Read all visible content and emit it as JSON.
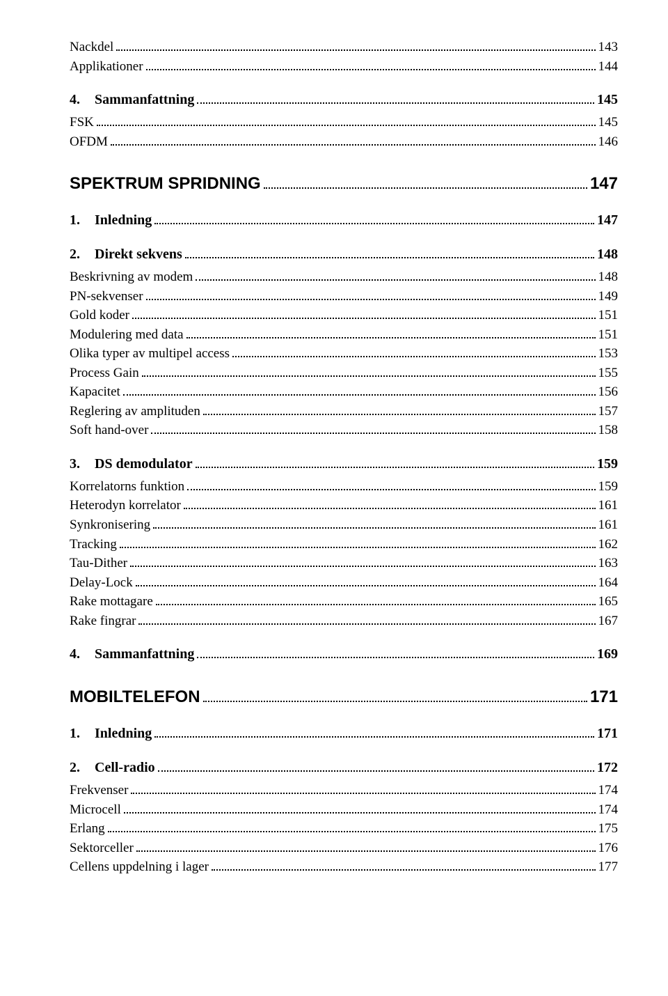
{
  "toc": [
    {
      "level": "body",
      "label": "Nackdel",
      "page": "143"
    },
    {
      "level": "body",
      "label": "Applikationer",
      "page": "144"
    },
    {
      "level": "h2",
      "num": "4.",
      "label": "Sammanfattning",
      "page": "145"
    },
    {
      "level": "body",
      "label": "FSK",
      "page": "145"
    },
    {
      "level": "body",
      "label": "OFDM",
      "page": "146"
    },
    {
      "level": "h1",
      "label": "SPEKTRUM SPRIDNING",
      "page": "147"
    },
    {
      "level": "h2",
      "num": "1.",
      "label": "Inledning",
      "page": "147"
    },
    {
      "level": "h2",
      "num": "2.",
      "label": "Direkt sekvens",
      "page": "148"
    },
    {
      "level": "body",
      "label": "Beskrivning av modem",
      "page": "148"
    },
    {
      "level": "body",
      "label": "PN-sekvenser",
      "page": "149"
    },
    {
      "level": "body",
      "label": "Gold koder",
      "page": "151"
    },
    {
      "level": "body",
      "label": "Modulering med data",
      "page": "151"
    },
    {
      "level": "body",
      "label": "Olika typer av multipel access",
      "page": "153"
    },
    {
      "level": "body",
      "label": "Process Gain",
      "page": "155"
    },
    {
      "level": "body",
      "label": "Kapacitet",
      "page": "156"
    },
    {
      "level": "body",
      "label": "Reglering av amplituden",
      "page": "157"
    },
    {
      "level": "body",
      "label": "Soft hand-over",
      "page": "158"
    },
    {
      "level": "h2",
      "num": "3.",
      "label": "DS  demodulator",
      "page": "159"
    },
    {
      "level": "body",
      "label": "Korrelatorns funktion",
      "page": "159"
    },
    {
      "level": "body",
      "label": "Heterodyn korrelator",
      "page": "161"
    },
    {
      "level": "body",
      "label": "Synkronisering",
      "page": "161"
    },
    {
      "level": "body",
      "label": "Tracking",
      "page": "162"
    },
    {
      "level": "body",
      "label": "Tau-Dither",
      "page": "163"
    },
    {
      "level": "body",
      "label": "Delay-Lock",
      "page": "164"
    },
    {
      "level": "body",
      "label": "Rake mottagare",
      "page": "165"
    },
    {
      "level": "body",
      "label": "Rake fingrar",
      "page": "167"
    },
    {
      "level": "h2",
      "num": "4.",
      "label": "Sammanfattning",
      "page": "169"
    },
    {
      "level": "h1",
      "label": "MOBILTELEFON",
      "page": "171"
    },
    {
      "level": "h2",
      "num": "1.",
      "label": "Inledning",
      "page": "171"
    },
    {
      "level": "h2",
      "num": "2.",
      "label": "Cell-radio",
      "page": "172"
    },
    {
      "level": "body",
      "label": "Frekvenser",
      "page": "174"
    },
    {
      "level": "body",
      "label": "Microcell",
      "page": "174"
    },
    {
      "level": "body",
      "label": "Erlang",
      "page": "175"
    },
    {
      "level": "body",
      "label": "Sektorceller",
      "page": "176"
    },
    {
      "level": "body",
      "label": "Cellens uppdelning i lager",
      "page": "177"
    }
  ]
}
